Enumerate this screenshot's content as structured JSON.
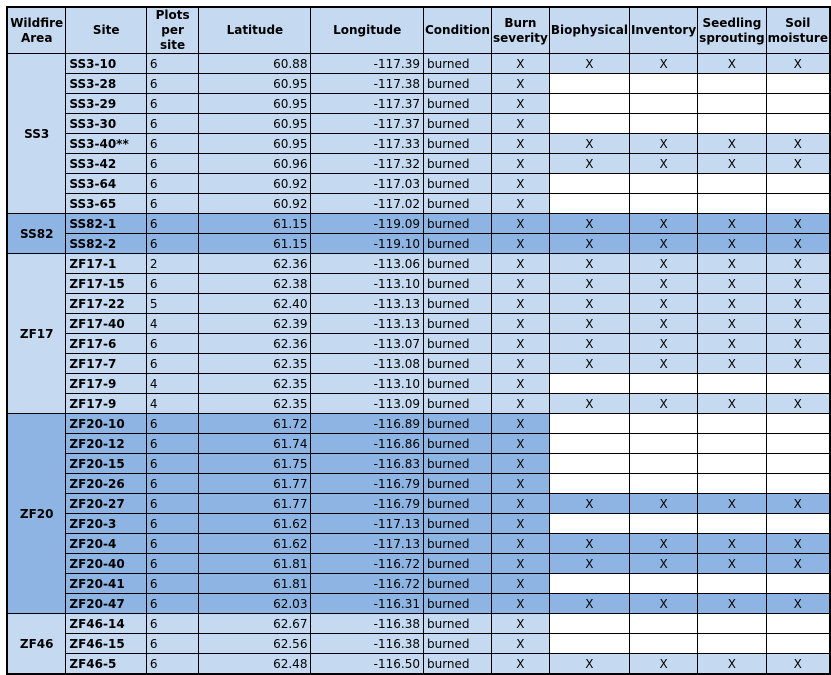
{
  "table": {
    "header": [
      "Wildfire Area",
      "Site",
      "Plots per site",
      "Latitude",
      "Longitude",
      "Condition",
      "Burn severity",
      "Biophysical",
      "Inventory",
      "Seedling sprouting",
      "Soil moisture"
    ],
    "groups": [
      {
        "area": "SS3",
        "rows": [
          [
            "SS3-10",
            "6",
            "60.88",
            "-117.39",
            "burned",
            "X",
            "X",
            "X",
            "X",
            "X"
          ],
          [
            "SS3-28",
            "6",
            "60.95",
            "-117.38",
            "burned",
            "X",
            null,
            null,
            null,
            null
          ],
          [
            "SS3-29",
            "6",
            "60.95",
            "-117.37",
            "burned",
            "X",
            null,
            null,
            null,
            null
          ],
          [
            "SS3-30",
            "6",
            "60.95",
            "-117.37",
            "burned",
            "X",
            null,
            null,
            null,
            null
          ],
          [
            "SS3-40**",
            "6",
            "60.95",
            "-117.33",
            "burned",
            "X",
            "X",
            "X",
            "X",
            "X"
          ],
          [
            "SS3-42",
            "6",
            "60.96",
            "-117.32",
            "burned",
            "X",
            "X",
            "X",
            "X",
            "X"
          ],
          [
            "SS3-64",
            "6",
            "60.92",
            "-117.03",
            "burned",
            "X",
            null,
            null,
            null,
            null
          ],
          [
            "SS3-65",
            "6",
            "60.92",
            "-117.02",
            "burned",
            "X",
            null,
            null,
            null,
            null
          ]
        ]
      },
      {
        "area": "SS82",
        "rows": [
          [
            "SS82-1",
            "6",
            "61.15",
            "-119.09",
            "burned",
            "X",
            "X",
            "X",
            "X",
            "X"
          ],
          [
            "SS82-2",
            "6",
            "61.15",
            "-119.10",
            "burned",
            "X",
            "X",
            "X",
            "X",
            "X"
          ]
        ]
      },
      {
        "area": "ZF17",
        "rows": [
          [
            "ZF17-1",
            "2",
            "62.36",
            "-113.06",
            "burned",
            "X",
            "X",
            "X",
            "X",
            "X"
          ],
          [
            "ZF17-15",
            "6",
            "62.38",
            "-113.10",
            "burned",
            "X",
            "X",
            "X",
            "X",
            "X"
          ],
          [
            "ZF17-22",
            "5",
            "62.40",
            "-113.13",
            "burned",
            "X",
            "X",
            "X",
            "X",
            "X"
          ],
          [
            "ZF17-40",
            "4",
            "62.39",
            "-113.13",
            "burned",
            "X",
            "X",
            "X",
            "X",
            "X"
          ],
          [
            "ZF17-6",
            "6",
            "62.36",
            "-113.07",
            "burned",
            "X",
            "X",
            "X",
            "X",
            "X"
          ],
          [
            "ZF17-7",
            "6",
            "62.35",
            "-113.08",
            "burned",
            "X",
            "X",
            "X",
            "X",
            "X"
          ],
          [
            "ZF17-9",
            "4",
            "62.35",
            "-113.10",
            "burned",
            "X",
            null,
            null,
            null,
            null
          ],
          [
            "ZF17-9",
            "4",
            "62.35",
            "-113.09",
            "burned",
            "X",
            "X",
            "X",
            "X",
            "X"
          ]
        ]
      },
      {
        "area": "ZF20",
        "rows": [
          [
            "ZF20-10",
            "6",
            "61.72",
            "-116.89",
            "burned",
            "X",
            null,
            null,
            null,
            null
          ],
          [
            "ZF20-12",
            "6",
            "61.74",
            "-116.86",
            "burned",
            "X",
            null,
            null,
            null,
            null
          ],
          [
            "ZF20-15",
            "6",
            "61.75",
            "-116.83",
            "burned",
            "X",
            null,
            null,
            null,
            null
          ],
          [
            "ZF20-26",
            "6",
            "61.77",
            "-116.79",
            "burned",
            "X",
            null,
            null,
            null,
            null
          ],
          [
            "ZF20-27",
            "6",
            "61.77",
            "-116.79",
            "burned",
            "X",
            "X",
            "X",
            "X",
            "X"
          ],
          [
            "ZF20-3",
            "6",
            "61.62",
            "-117.13",
            "burned",
            "X",
            null,
            null,
            null,
            null
          ],
          [
            "ZF20-4",
            "6",
            "61.62",
            "-117.13",
            "burned",
            "X",
            "X",
            "X",
            "X",
            "X"
          ],
          [
            "ZF20-40",
            "6",
            "61.81",
            "-116.72",
            "burned",
            "X",
            "X",
            "X",
            "X",
            "X"
          ],
          [
            "ZF20-41",
            "6",
            "61.81",
            "-116.72",
            "burned",
            "X",
            null,
            null,
            null,
            null
          ],
          [
            "ZF20-47",
            "6",
            "62.03",
            "-116.31",
            "burned",
            "X",
            "X",
            "X",
            "X",
            "X"
          ]
        ]
      },
      {
        "area": "ZF46",
        "rows": [
          [
            "ZF46-14",
            "6",
            "62.67",
            "-116.38",
            "burned",
            "X",
            null,
            null,
            null,
            null
          ],
          [
            "ZF46-15",
            "6",
            "62.56",
            "-116.38",
            "burned",
            "X",
            null,
            null,
            null,
            null
          ],
          [
            "ZF46-5",
            "6",
            "62.48",
            "-116.50",
            "burned",
            "X",
            "X",
            "X",
            "X",
            "X"
          ]
        ]
      }
    ]
  }
}
